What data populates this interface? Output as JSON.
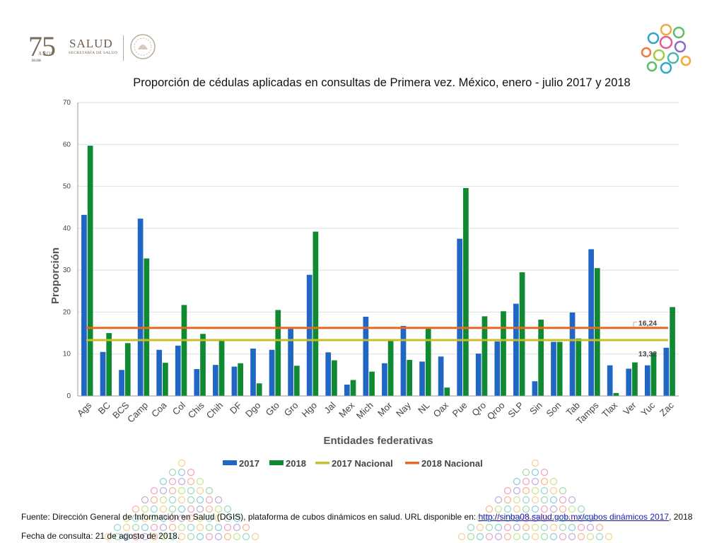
{
  "header": {
    "logo_number": "75",
    "logo_anos": "AÑOS",
    "logo_years": "1943 - 2018",
    "logo_salud": "SALUD",
    "logo_secretaria": "SECRETARÍA DE SALUD"
  },
  "chart_data": {
    "type": "bar",
    "title": "Proporción de cédulas aplicadas en consultas de Primera vez. México, enero - julio 2017 y 2018",
    "xlabel": "Entidades federativas",
    "ylabel": "Proporción",
    "ylim": [
      0,
      70
    ],
    "yticks": [
      0,
      10,
      20,
      30,
      40,
      50,
      60,
      70
    ],
    "grid": true,
    "legend_position": "bottom",
    "categories": [
      "Ags",
      "BC",
      "BCS",
      "Camp",
      "Coa",
      "Col",
      "Chis",
      "Chih",
      "DF",
      "Dgo",
      "Gto",
      "Gro",
      "Hgo",
      "Jal",
      "Mex",
      "Mich",
      "Mor",
      "Nay",
      "NL",
      "Oax",
      "Pue",
      "Qro",
      "Qroo",
      "SLP",
      "Sin",
      "Son",
      "Tab",
      "Tamps",
      "Tlax",
      "Ver",
      "Yuc",
      "Zac"
    ],
    "series": [
      {
        "name": "2017",
        "color": "#1f66c5",
        "values": [
          43.2,
          10.5,
          6.2,
          42.3,
          11.0,
          12.0,
          6.4,
          7.4,
          7.0,
          11.3,
          11.0,
          16.0,
          28.9,
          10.4,
          2.7,
          18.9,
          7.8,
          16.7,
          8.2,
          9.4,
          37.5,
          10.1,
          13.0,
          22.0,
          3.5,
          12.9,
          19.9,
          35.0,
          7.3,
          6.5,
          7.3,
          11.5
        ]
      },
      {
        "name": "2018",
        "color": "#0f8a32",
        "values": [
          59.7,
          15.0,
          12.6,
          32.8,
          7.9,
          21.7,
          14.8,
          13.1,
          7.8,
          3.0,
          20.5,
          7.2,
          39.2,
          8.5,
          3.8,
          5.8,
          13.1,
          8.6,
          16.0,
          2.0,
          49.6,
          19.0,
          20.2,
          29.5,
          18.2,
          12.9,
          13.7,
          30.5,
          0.7,
          8.0,
          10.3,
          21.2
        ]
      }
    ],
    "reference_lines": [
      {
        "name": "2017 Nacional",
        "value": 13.32,
        "label": "13,32",
        "color": "#c6bf2a"
      },
      {
        "name": "2018 Nacional",
        "value": 16.24,
        "label": "16,24",
        "color": "#e86a1e"
      }
    ]
  },
  "footer": {
    "source_prefix": "Fuente: Dirección General de Información en Salud (DGIS), plataforma de cubos dinámicos en salud. URL disponible en: ",
    "source_link": "http://sinba08.salud.gob.mx/cubos dinámicos 2017",
    "source_suffix": ", 2018",
    "consult_date": "Fecha de consulta: 21 de agosto de  2018."
  }
}
